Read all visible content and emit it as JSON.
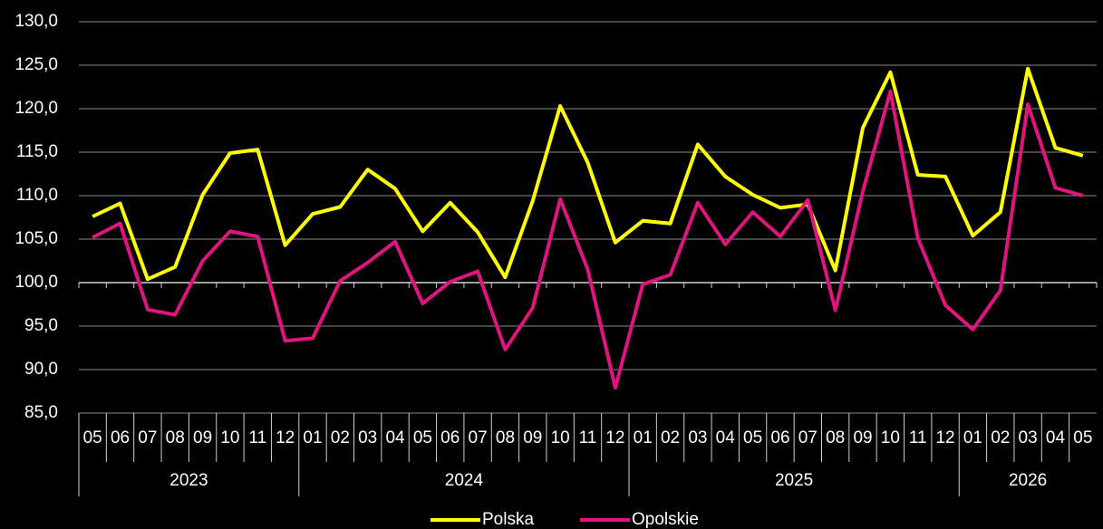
{
  "chart_data": {
    "type": "line",
    "categories": [
      "05",
      "06",
      "07",
      "08",
      "09",
      "10",
      "11",
      "12",
      "01",
      "02",
      "03",
      "04",
      "05",
      "06",
      "07",
      "08",
      "09",
      "10",
      "11",
      "12",
      "01",
      "02",
      "03",
      "04",
      "05",
      "06",
      "07",
      "08",
      "09",
      "10",
      "11",
      "12",
      "01",
      "02",
      "03",
      "04",
      "05"
    ],
    "years": [
      "2023",
      "2024",
      "2025",
      "2026"
    ],
    "series": [
      {
        "name": "Polska",
        "color": "#ffff00",
        "values": [
          107.6,
          109.1,
          100.4,
          101.8,
          110.1,
          114.9,
          115.3,
          104.3,
          107.9,
          108.7,
          113.0,
          110.8,
          105.9,
          109.2,
          105.8,
          100.6,
          109.4,
          120.3,
          113.8,
          104.6,
          107.1,
          106.8,
          115.9,
          112.2,
          110.1,
          108.6,
          109.0,
          101.4,
          117.8,
          124.2,
          112.4,
          112.2,
          105.4,
          108.1,
          124.6,
          115.5,
          114.6
        ]
      },
      {
        "name": "Opolskie",
        "color": "#e0147f",
        "values": [
          105.2,
          106.8,
          96.9,
          96.3,
          102.5,
          105.9,
          105.3,
          93.3,
          93.6,
          100.2,
          102.3,
          104.7,
          97.6,
          100.1,
          101.3,
          92.3,
          97.1,
          109.6,
          101.5,
          87.9,
          99.8,
          100.9,
          109.2,
          104.4,
          108.1,
          105.3,
          109.5,
          96.8,
          110.5,
          122.0,
          105.1,
          97.4,
          94.6,
          99.1,
          120.5,
          110.9,
          110.0
        ]
      }
    ],
    "ylim": [
      85,
      130
    ],
    "yticks": [
      {
        "value": 85,
        "label": "85,0"
      },
      {
        "value": 90,
        "label": "90,0"
      },
      {
        "value": 95,
        "label": "95,0"
      },
      {
        "value": 100,
        "label": "100,0"
      },
      {
        "value": 105,
        "label": "105,0"
      },
      {
        "value": 110,
        "label": "110,0"
      },
      {
        "value": 115,
        "label": "115,0"
      },
      {
        "value": 120,
        "label": "120,0"
      },
      {
        "value": 125,
        "label": "125,0"
      },
      {
        "value": 130,
        "label": "130,0"
      }
    ],
    "axis_crossing": 100,
    "grid": true,
    "legend": "bottom"
  }
}
